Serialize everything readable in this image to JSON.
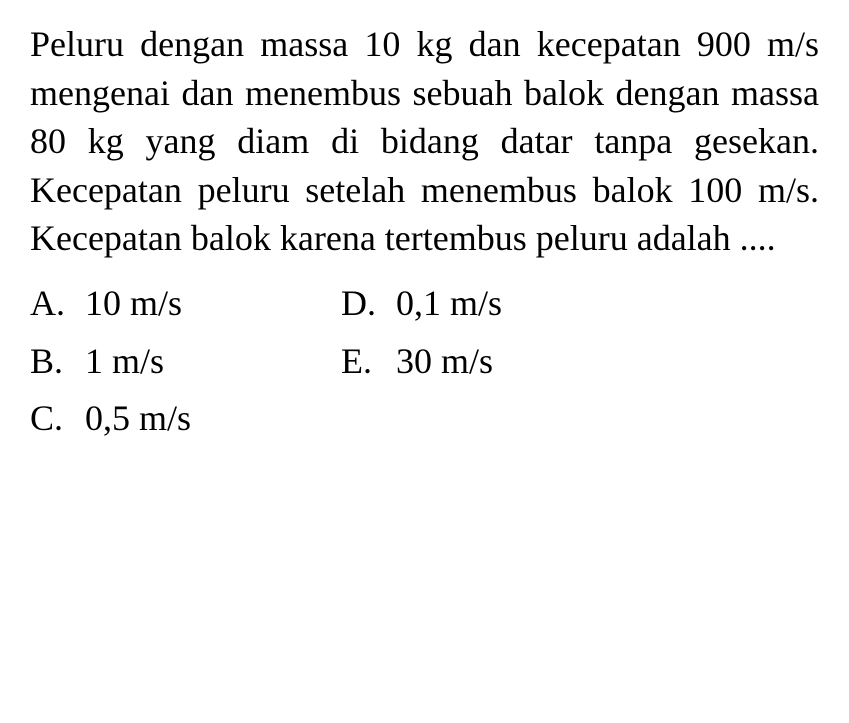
{
  "question": {
    "text": "Peluru dengan massa 10 kg dan kecepatan 900 m/s mengenai dan menembus sebuah balok dengan massa 80 kg yang diam di bidang datar tanpa gesekan. Kecepatan peluru setelah menembus balok 100 m/s. Kecepatan balok karena tertembus peluru adalah ....",
    "font_size": 36,
    "color": "#000000",
    "background_color": "#ffffff"
  },
  "options": {
    "left_column": [
      {
        "letter": "A.",
        "value": "10 m/s"
      },
      {
        "letter": "B.",
        "value": "1 m/s"
      },
      {
        "letter": "C.",
        "value": "0,5 m/s"
      }
    ],
    "right_column": [
      {
        "letter": "D.",
        "value": "0,1 m/s"
      },
      {
        "letter": "E.",
        "value": "30 m/s"
      }
    ],
    "font_size": 36,
    "color": "#000000"
  }
}
